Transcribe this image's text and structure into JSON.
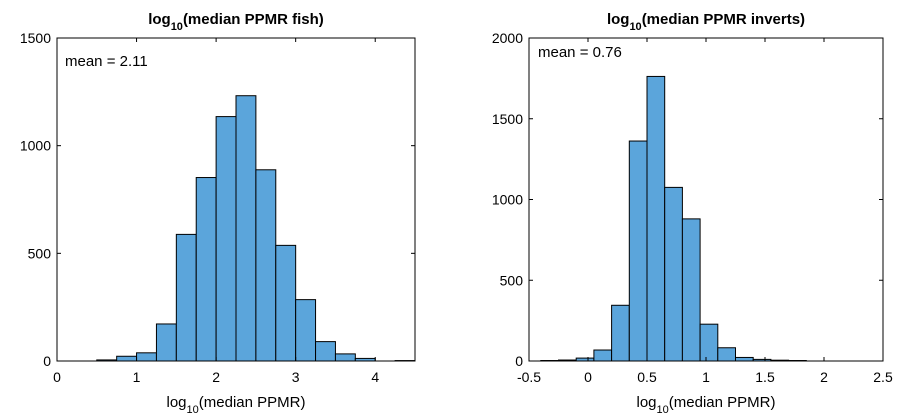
{
  "colors": {
    "bar_fill": "#5ba5db",
    "bar_edge": "#000000"
  },
  "chart_data": [
    {
      "type": "bar",
      "title_main": "log",
      "title_sub": "10",
      "title_rest": "(median PPMR fish)",
      "xlabel_main": "log",
      "xlabel_sub": "10",
      "xlabel_rest": "(median PPMR)",
      "annotation": "mean = 2.11",
      "xlim": [
        0,
        4.5
      ],
      "ylim": [
        0,
        1500
      ],
      "xticks": [
        0,
        1,
        2,
        3,
        4
      ],
      "xtick_labels": [
        "0",
        "1",
        "2",
        "3",
        "4"
      ],
      "yticks": [
        0,
        500,
        1000,
        1500
      ],
      "ytick_labels": [
        "0",
        "500",
        "1000",
        "1500"
      ],
      "bin_width": 0.25,
      "bin_edges": [
        0.25,
        0.5,
        0.75,
        1.0,
        1.25,
        1.5,
        1.75,
        2.0,
        2.25,
        2.5,
        2.75,
        3.0,
        3.25,
        3.5,
        3.75,
        4.0,
        4.25,
        4.5
      ],
      "values": [
        0,
        5,
        22,
        38,
        172,
        588,
        852,
        1135,
        1232,
        888,
        537,
        285,
        90,
        33,
        12,
        0,
        2
      ]
    },
    {
      "type": "bar",
      "title_main": "log",
      "title_sub": "10",
      "title_rest": "(median PPMR inverts)",
      "xlabel_main": "log",
      "xlabel_sub": "10",
      "xlabel_rest": "(median PPMR)",
      "annotation": "mean = 0.76",
      "xlim": [
        -0.5,
        2.5
      ],
      "ylim": [
        0,
        2000
      ],
      "xticks": [
        -0.5,
        0,
        0.5,
        1,
        1.5,
        2,
        2.5
      ],
      "xtick_labels": [
        "-0.5",
        "0",
        "0.5",
        "1",
        "1.5",
        "2",
        "2.5"
      ],
      "yticks": [
        0,
        500,
        1000,
        1500,
        2000
      ],
      "ytick_labels": [
        "0",
        "500",
        "1000",
        "1500",
        "2000"
      ],
      "bin_width": 0.15,
      "bin_edges": [
        -0.4,
        -0.25,
        -0.1,
        0.05,
        0.2,
        0.35,
        0.5,
        0.65,
        0.8,
        0.95,
        1.1,
        1.25,
        1.4,
        1.55,
        1.7,
        1.85,
        2.0,
        2.15
      ],
      "values": [
        3,
        6,
        18,
        68,
        345,
        1362,
        1762,
        1075,
        880,
        228,
        82,
        22,
        10,
        5,
        3,
        0,
        0
      ]
    }
  ]
}
